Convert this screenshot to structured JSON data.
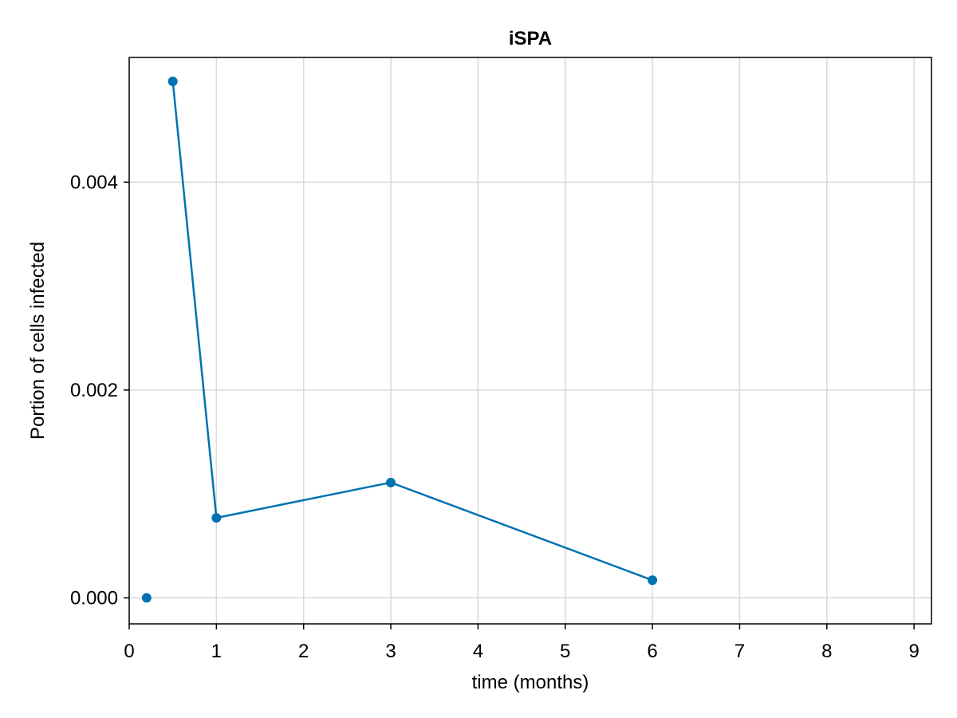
{
  "chart_data": {
    "type": "scatter",
    "title": "iSPA",
    "xlabel": "time (months)",
    "ylabel": "Portion of cells infected",
    "xlim": [
      0,
      9.2
    ],
    "ylim": [
      -0.00025,
      0.0052
    ],
    "x_ticks": [
      0,
      1,
      2,
      3,
      4,
      5,
      6,
      7,
      8,
      9
    ],
    "x_tick_labels": [
      "0",
      "1",
      "2",
      "3",
      "4",
      "5",
      "6",
      "7",
      "8",
      "9"
    ],
    "y_ticks": [
      0,
      0.002,
      0.004
    ],
    "y_tick_labels": [
      "0.000",
      "0.002",
      "0.004"
    ],
    "grid": true,
    "color": "#0072b2",
    "series": [
      {
        "points": [
          {
            "x": 0.2,
            "y": 0.0
          },
          {
            "x": 0.5,
            "y": 0.00497
          },
          {
            "x": 1,
            "y": 0.00077
          },
          {
            "x": 3,
            "y": 0.00111
          },
          {
            "x": 6,
            "y": 0.00017
          }
        ],
        "line_segment": [
          {
            "x": 0.5,
            "y": 0.00497
          },
          {
            "x": 1,
            "y": 0.00077
          },
          {
            "x": 3,
            "y": 0.00111
          },
          {
            "x": 6,
            "y": 0.00017
          }
        ]
      }
    ]
  }
}
